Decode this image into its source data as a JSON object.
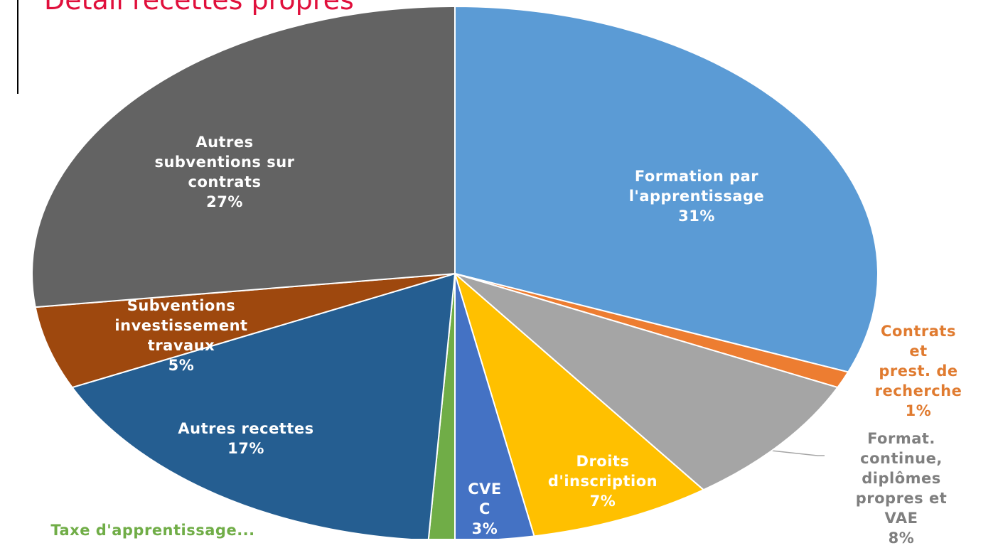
{
  "chart_data": {
    "type": "pie",
    "title": "Détail recettes propres",
    "categories": [
      "Formation par\nl'apprentissage",
      "Contrats et\nprest. de\nrecherche",
      "Format.\ncontinue,\ndiplômes\npropres et VAE",
      "Droits\nd'inscription",
      "CVEC",
      "Taxe d'apprentissage...",
      "Autres recettes",
      "Subventions\ninvestissement\ntravaux",
      "Autres\nsubventions sur\ncontrats"
    ],
    "values": [
      31,
      1,
      8,
      7,
      3,
      1,
      17,
      5,
      27
    ],
    "value_labels": [
      "31%",
      "1%",
      "8%",
      "7%",
      "3%",
      null,
      "17%",
      "5%",
      "27%"
    ],
    "colors": [
      "#5b9bd5",
      "#ed7d31",
      "#a5a5a5",
      "#ffc000",
      "#4472c4",
      "#70ad47",
      "#255e91",
      "#9e480e",
      "#636363"
    ]
  }
}
